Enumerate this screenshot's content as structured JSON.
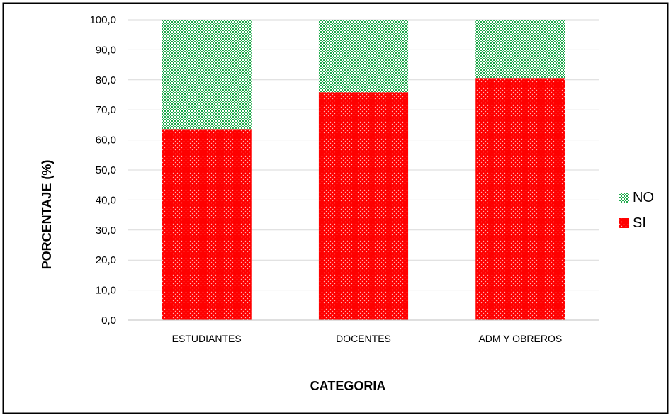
{
  "chart_data": {
    "type": "bar",
    "stacked": true,
    "categories": [
      "ESTUDIANTES",
      "DOCENTES",
      "ADM Y OBREROS"
    ],
    "series": [
      {
        "name": "SI",
        "values": [
          63.6,
          75.9,
          80.6
        ],
        "color": "#ff0000",
        "pattern": "dotted"
      },
      {
        "name": "NO",
        "values": [
          36.4,
          24.1,
          19.4
        ],
        "color": "#1faa4b",
        "pattern": "checkered"
      }
    ],
    "xlabel": "CATEGORIA",
    "ylabel": "PORCENTAJE (%)",
    "ylim": [
      0,
      100
    ],
    "yticks": [
      "0,0",
      "10,0",
      "20,0",
      "30,0",
      "40,0",
      "50,0",
      "60,0",
      "70,0",
      "80,0",
      "90,0",
      "100,0"
    ],
    "grid": true,
    "legend_position": "right"
  }
}
